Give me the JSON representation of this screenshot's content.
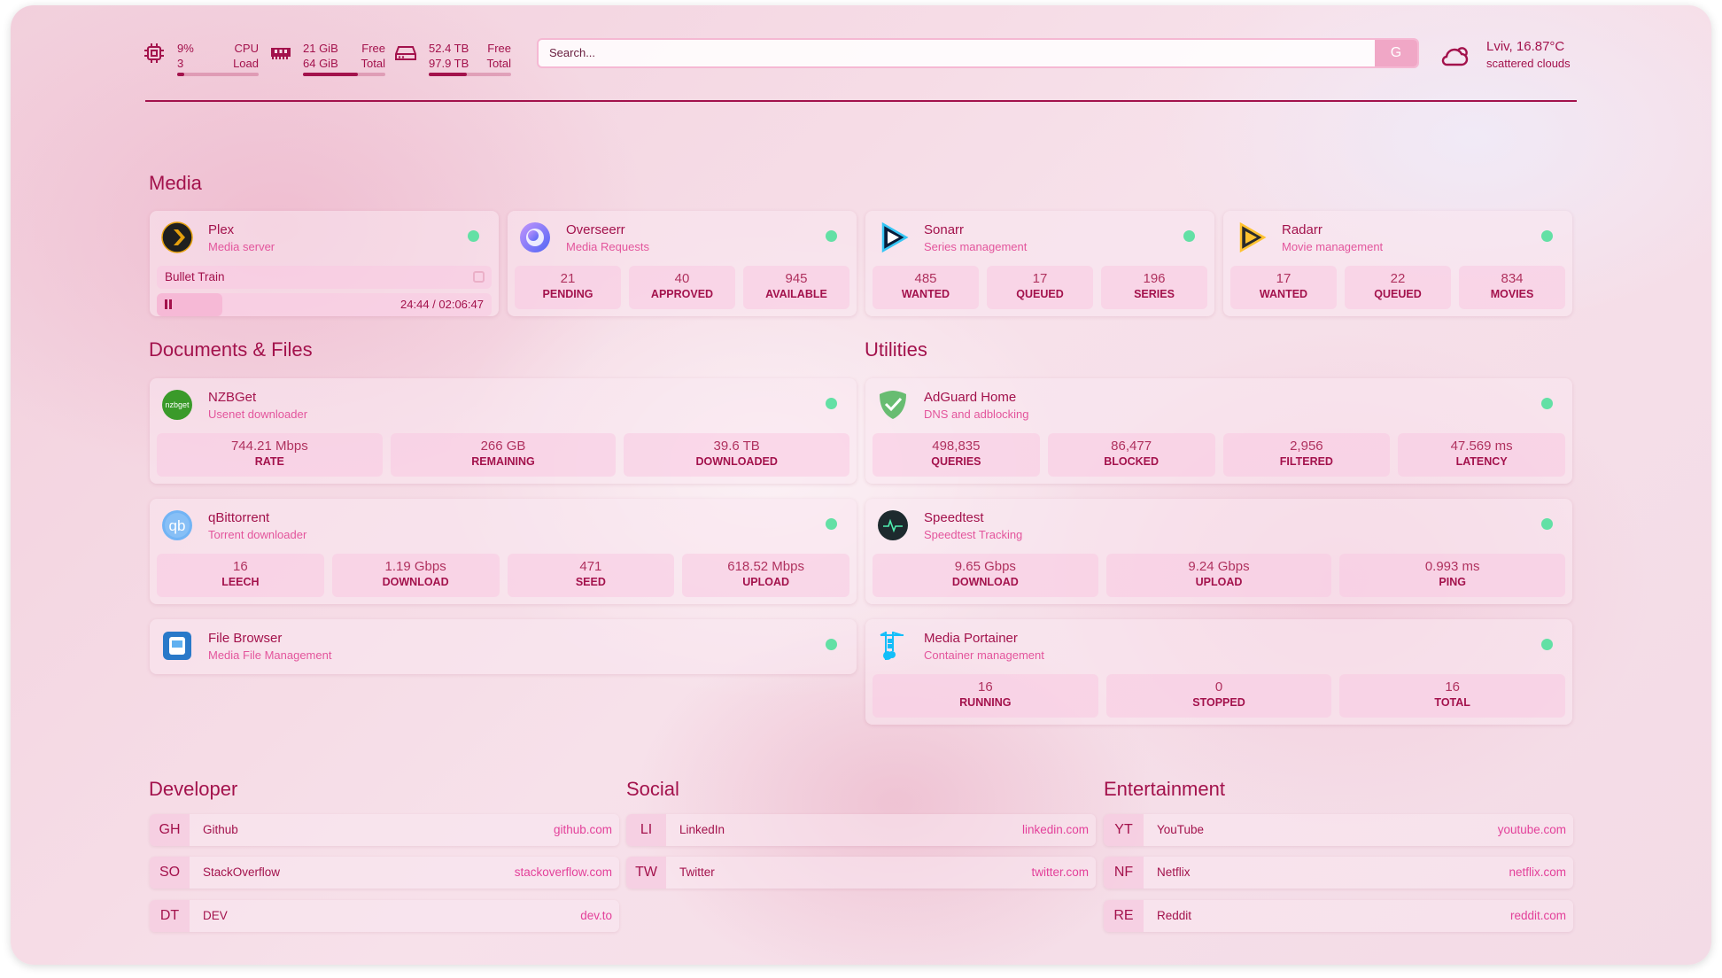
{
  "header": {
    "cpu": {
      "icon": "cpu-icon",
      "value": "9%",
      "sub": "3",
      "label1": "CPU",
      "label2": "Load",
      "percent": 9
    },
    "memory": {
      "icon": "memory-icon",
      "value": "21 GiB",
      "sub": "64 GiB",
      "label1": "Free",
      "label2": "Total",
      "percent": 67
    },
    "disk": {
      "icon": "disk-icon",
      "value": "52.4 TB",
      "sub": "97.9 TB",
      "label1": "Free",
      "label2": "Total",
      "percent": 46
    },
    "search": {
      "placeholder": "Search...",
      "button": "G"
    },
    "weather": {
      "icon": "cloud-icon",
      "location": "Lviv, 16.87°C",
      "condition": "scattered clouds"
    }
  },
  "colors": {
    "accent": "#a3124c",
    "subtitle": "#e3559c",
    "status_up": "#63e0a5"
  },
  "groups": {
    "media": "Media",
    "docs": "Documents & Files",
    "utilities": "Utilities",
    "developer": "Developer",
    "social": "Social",
    "entertainment": "Entertainment"
  },
  "services": [
    {
      "id": "plex",
      "name": "Plex",
      "desc": "Media server",
      "icon": "plex-icon",
      "now_playing": {
        "title": "Bullet Train",
        "time": "24:44 / 02:06:47",
        "progress": 19.5
      }
    },
    {
      "id": "overseerr",
      "name": "Overseerr",
      "desc": "Media Requests",
      "icon": "overseerr-icon",
      "stats": [
        {
          "v": "21",
          "k": "PENDING"
        },
        {
          "v": "40",
          "k": "APPROVED"
        },
        {
          "v": "945",
          "k": "AVAILABLE"
        }
      ]
    },
    {
      "id": "sonarr",
      "name": "Sonarr",
      "desc": "Series management",
      "icon": "sonarr-icon",
      "stats": [
        {
          "v": "485",
          "k": "WANTED"
        },
        {
          "v": "17",
          "k": "QUEUED"
        },
        {
          "v": "196",
          "k": "SERIES"
        }
      ]
    },
    {
      "id": "radarr",
      "name": "Radarr",
      "desc": "Movie management",
      "icon": "radarr-icon",
      "stats": [
        {
          "v": "17",
          "k": "WANTED"
        },
        {
          "v": "22",
          "k": "QUEUED"
        },
        {
          "v": "834",
          "k": "MOVIES"
        }
      ]
    },
    {
      "id": "nzbget",
      "name": "NZBGet",
      "desc": "Usenet downloader",
      "icon": "nzbget-icon",
      "stats": [
        {
          "v": "744.21 Mbps",
          "k": "RATE"
        },
        {
          "v": "266 GB",
          "k": "REMAINING"
        },
        {
          "v": "39.6 TB",
          "k": "DOWNLOADED"
        }
      ]
    },
    {
      "id": "qbittorrent",
      "name": "qBittorrent",
      "desc": "Torrent downloader",
      "icon": "qbittorrent-icon",
      "stats": [
        {
          "v": "16",
          "k": "LEECH"
        },
        {
          "v": "1.19 Gbps",
          "k": "DOWNLOAD"
        },
        {
          "v": "471",
          "k": "SEED"
        },
        {
          "v": "618.52 Mbps",
          "k": "UPLOAD"
        }
      ]
    },
    {
      "id": "filebrowser",
      "name": "File Browser",
      "desc": "Media File Management",
      "icon": "file-browser-icon"
    },
    {
      "id": "adguard",
      "name": "AdGuard Home",
      "desc": "DNS and adblocking",
      "icon": "adguard-icon",
      "stats": [
        {
          "v": "498,835",
          "k": "QUERIES"
        },
        {
          "v": "86,477",
          "k": "BLOCKED"
        },
        {
          "v": "2,956",
          "k": "FILTERED"
        },
        {
          "v": "47.569 ms",
          "k": "LATENCY"
        }
      ]
    },
    {
      "id": "speedtest",
      "name": "Speedtest",
      "desc": "Speedtest Tracking",
      "icon": "speedtest-icon",
      "stats": [
        {
          "v": "9.65 Gbps",
          "k": "DOWNLOAD"
        },
        {
          "v": "9.24 Gbps",
          "k": "UPLOAD"
        },
        {
          "v": "0.993 ms",
          "k": "PING"
        }
      ]
    },
    {
      "id": "portainer",
      "name": "Media Portainer",
      "desc": "Container management",
      "icon": "portainer-icon",
      "stats": [
        {
          "v": "16",
          "k": "RUNNING"
        },
        {
          "v": "0",
          "k": "STOPPED"
        },
        {
          "v": "16",
          "k": "TOTAL"
        }
      ]
    }
  ],
  "bookmarks": [
    [
      {
        "abbr": "GH",
        "name": "Github",
        "url": "github.com"
      },
      {
        "abbr": "SO",
        "name": "StackOverflow",
        "url": "stackoverflow.com"
      },
      {
        "abbr": "DT",
        "name": "DEV",
        "url": "dev.to"
      }
    ],
    [
      {
        "abbr": "LI",
        "name": "LinkedIn",
        "url": "linkedin.com"
      },
      {
        "abbr": "TW",
        "name": "Twitter",
        "url": "twitter.com"
      }
    ],
    [
      {
        "abbr": "YT",
        "name": "YouTube",
        "url": "youtube.com"
      },
      {
        "abbr": "NF",
        "name": "Netflix",
        "url": "netflix.com"
      },
      {
        "abbr": "RE",
        "name": "Reddit",
        "url": "reddit.com"
      }
    ]
  ]
}
